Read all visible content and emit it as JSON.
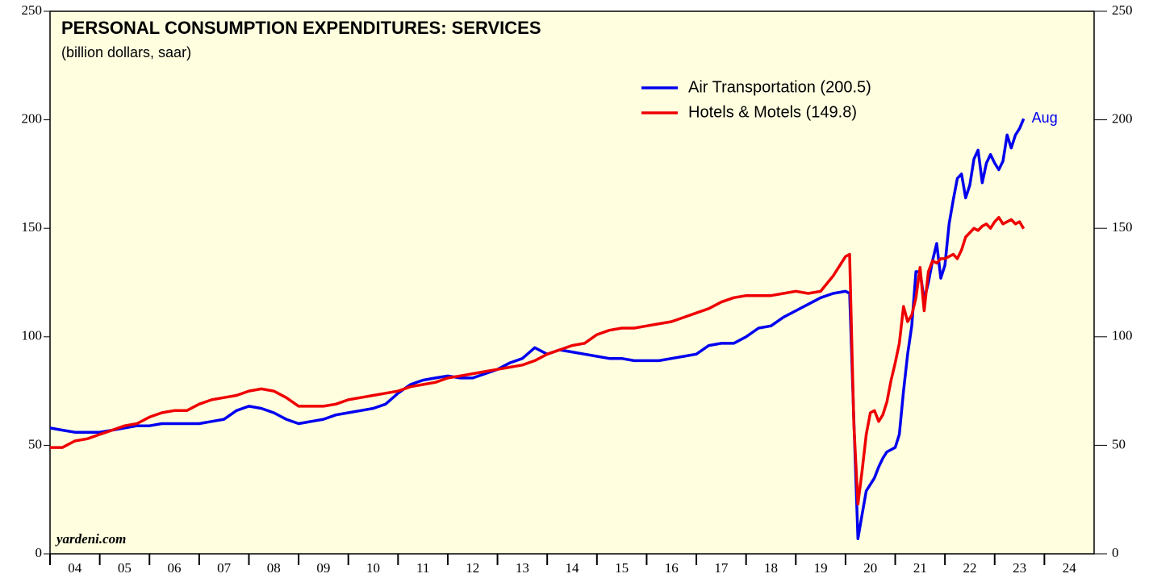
{
  "chart_data": {
    "type": "line",
    "title": "PERSONAL CONSUMPTION EXPENDITURES: SERVICES",
    "subtitle": "(billion dollars, saar)",
    "annotations": [
      "Aug",
      "yardeni.com"
    ],
    "x": [
      2004,
      2004.25,
      2004.5,
      2004.75,
      2005,
      2005.25,
      2005.5,
      2005.75,
      2006,
      2006.25,
      2006.5,
      2006.75,
      2007,
      2007.25,
      2007.5,
      2007.75,
      2008,
      2008.25,
      2008.5,
      2008.75,
      2009,
      2009.25,
      2009.5,
      2009.75,
      2010,
      2010.25,
      2010.5,
      2010.75,
      2011,
      2011.25,
      2011.5,
      2011.75,
      2012,
      2012.25,
      2012.5,
      2012.75,
      2013,
      2013.25,
      2013.5,
      2013.75,
      2014,
      2014.25,
      2014.5,
      2014.75,
      2015,
      2015.25,
      2015.5,
      2015.75,
      2016,
      2016.25,
      2016.5,
      2016.75,
      2017,
      2017.25,
      2017.5,
      2017.75,
      2018,
      2018.25,
      2018.5,
      2018.75,
      2019,
      2019.25,
      2019.5,
      2019.75,
      2020,
      2020.083,
      2020.167,
      2020.25,
      2020.333,
      2020.417,
      2020.5,
      2020.583,
      2020.667,
      2020.75,
      2020.833,
      2020.917,
      2021,
      2021.083,
      2021.167,
      2021.25,
      2021.333,
      2021.417,
      2021.5,
      2021.583,
      2021.667,
      2021.75,
      2021.833,
      2021.917,
      2022,
      2022.083,
      2022.167,
      2022.25,
      2022.333,
      2022.417,
      2022.5,
      2022.583,
      2022.667,
      2022.75,
      2022.833,
      2022.917,
      2023,
      2023.083,
      2023.167,
      2023.25,
      2023.333,
      2023.417,
      2023.5,
      2023.583
    ],
    "series": [
      {
        "name": "Air Transportation (200.5)",
        "color": "#0000ee",
        "values": [
          58,
          57,
          56,
          56,
          56,
          57,
          58,
          59,
          59,
          60,
          60,
          60,
          60,
          61,
          62,
          66,
          68,
          67,
          65,
          62,
          60,
          61,
          62,
          64,
          65,
          66,
          67,
          69,
          74,
          78,
          80,
          81,
          82,
          81,
          81,
          83,
          85,
          88,
          90,
          95,
          92,
          94,
          93,
          92,
          91,
          90,
          90,
          89,
          89,
          89,
          90,
          91,
          92,
          96,
          97,
          97,
          100,
          104,
          105,
          109,
          112,
          115,
          118,
          120,
          121,
          120,
          62,
          7,
          18,
          29,
          32,
          35,
          40,
          44,
          47,
          48,
          49,
          55,
          75,
          92,
          105,
          130,
          130,
          117,
          125,
          135,
          143,
          127,
          133,
          152,
          163,
          173,
          175,
          164,
          170,
          182,
          186,
          171,
          180,
          184,
          180,
          177,
          181,
          193,
          187,
          193,
          196,
          200.5
        ]
      },
      {
        "name": "Hotels & Motels (149.8)",
        "color": "#ee0000",
        "values": [
          49,
          49,
          52,
          53,
          55,
          57,
          59,
          60,
          63,
          65,
          66,
          66,
          69,
          71,
          72,
          73,
          75,
          76,
          75,
          72,
          68,
          68,
          68,
          69,
          71,
          72,
          73,
          74,
          75,
          77,
          78,
          79,
          81,
          82,
          83,
          84,
          85,
          86,
          87,
          89,
          92,
          94,
          96,
          97,
          101,
          103,
          104,
          104,
          105,
          106,
          107,
          109,
          111,
          113,
          116,
          118,
          119,
          119,
          119,
          120,
          121,
          120,
          121,
          128,
          137,
          138,
          60,
          23,
          38,
          55,
          65,
          66,
          61,
          64,
          70,
          80,
          88,
          97,
          114,
          107,
          110,
          118,
          132,
          112,
          130,
          135,
          134,
          136,
          136,
          137,
          138,
          136,
          140,
          146,
          148,
          150,
          149,
          151,
          152,
          150,
          153,
          155,
          152,
          153,
          154,
          152,
          153,
          149.8
        ]
      }
    ],
    "xlim": [
      2004,
      2025
    ],
    "xticks": [
      {
        "value": 2004,
        "label": "04"
      },
      {
        "value": 2005,
        "label": "05"
      },
      {
        "value": 2006,
        "label": "06"
      },
      {
        "value": 2007,
        "label": "07"
      },
      {
        "value": 2008,
        "label": "08"
      },
      {
        "value": 2009,
        "label": "09"
      },
      {
        "value": 2010,
        "label": "10"
      },
      {
        "value": 2011,
        "label": "11"
      },
      {
        "value": 2012,
        "label": "12"
      },
      {
        "value": 2013,
        "label": "13"
      },
      {
        "value": 2014,
        "label": "14"
      },
      {
        "value": 2015,
        "label": "15"
      },
      {
        "value": 2016,
        "label": "16"
      },
      {
        "value": 2017,
        "label": "17"
      },
      {
        "value": 2018,
        "label": "18"
      },
      {
        "value": 2019,
        "label": "19"
      },
      {
        "value": 2020,
        "label": "20"
      },
      {
        "value": 2021,
        "label": "21"
      },
      {
        "value": 2022,
        "label": "22"
      },
      {
        "value": 2023,
        "label": "23"
      },
      {
        "value": 2024,
        "label": "24"
      }
    ],
    "ylim": [
      0,
      250
    ],
    "yticks": [
      0,
      50,
      100,
      150,
      200,
      250
    ],
    "legend": "top-right",
    "background": "#ffffe0"
  }
}
